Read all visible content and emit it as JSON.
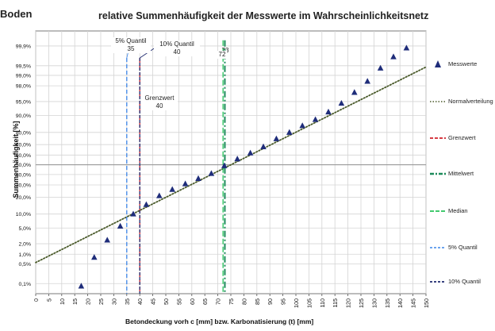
{
  "corner_label": "Boden",
  "chart_data": {
    "type": "scatter",
    "title": "relative Summenhäufigkeit der Messwerte im Wahrscheinlichkeitsnetz",
    "xlabel": "Betondeckung vorh c [mm] bzw. Karbonatisierung (t) [mm]",
    "ylabel": "Summenhäufigkeit [%]",
    "xlim": [
      0,
      150
    ],
    "x_ticks": [
      0,
      5,
      10,
      15,
      20,
      25,
      30,
      35,
      40,
      45,
      50,
      55,
      60,
      65,
      70,
      75,
      80,
      85,
      90,
      95,
      100,
      105,
      110,
      115,
      120,
      125,
      130,
      135,
      140,
      145,
      150
    ],
    "y_scale": "normal-probability",
    "y_ticks": [
      {
        "p": 0.1,
        "label": "0,1%"
      },
      {
        "p": 0.5,
        "label": "0,5%"
      },
      {
        "p": 1,
        "label": "1,0%"
      },
      {
        "p": 2,
        "label": "2,0%"
      },
      {
        "p": 5,
        "label": "5,0%"
      },
      {
        "p": 10,
        "label": "10,0%"
      },
      {
        "p": 20,
        "label": "20,0%"
      },
      {
        "p": 30,
        "label": "30,0%"
      },
      {
        "p": 40,
        "label": "40,0%"
      },
      {
        "p": 50,
        "label": "50,0%"
      },
      {
        "p": 60,
        "label": "60,0%"
      },
      {
        "p": 70,
        "label": "70,0%"
      },
      {
        "p": 80,
        "label": "80,0%"
      },
      {
        "p": 90,
        "label": "90,0%"
      },
      {
        "p": 95,
        "label": "95,0%"
      },
      {
        "p": 98,
        "label": "98,0%"
      },
      {
        "p": 99,
        "label": "99,0%"
      },
      {
        "p": 99.5,
        "label": "99,5%"
      },
      {
        "p": 99.9,
        "label": "99,9%"
      }
    ],
    "grid": true,
    "legend_position": "right",
    "measured": {
      "name": "Messwerte",
      "color": "#1f2d7a",
      "points": [
        {
          "x": 17.5,
          "y": 0.08
        },
        {
          "x": 22.5,
          "y": 0.8
        },
        {
          "x": 27.5,
          "y": 2.5
        },
        {
          "x": 32.5,
          "y": 5.5
        },
        {
          "x": 37.5,
          "y": 10
        },
        {
          "x": 42.5,
          "y": 15
        },
        {
          "x": 47.5,
          "y": 21
        },
        {
          "x": 52.5,
          "y": 26
        },
        {
          "x": 57.5,
          "y": 31
        },
        {
          "x": 62.5,
          "y": 36
        },
        {
          "x": 67.5,
          "y": 41
        },
        {
          "x": 72.5,
          "y": 49
        },
        {
          "x": 77.5,
          "y": 56
        },
        {
          "x": 82.5,
          "y": 62
        },
        {
          "x": 87.5,
          "y": 68
        },
        {
          "x": 92.5,
          "y": 75
        },
        {
          "x": 97.5,
          "y": 80
        },
        {
          "x": 102.5,
          "y": 84.5
        },
        {
          "x": 107.5,
          "y": 88
        },
        {
          "x": 112.5,
          "y": 91.5
        },
        {
          "x": 117.5,
          "y": 94.5
        },
        {
          "x": 122.5,
          "y": 97
        },
        {
          "x": 127.5,
          "y": 98.5
        },
        {
          "x": 132.5,
          "y": 99.4
        },
        {
          "x": 137.5,
          "y": 99.75
        },
        {
          "x": 142.5,
          "y": 99.88
        }
      ]
    },
    "normal_fit": {
      "name": "Normalverteilung",
      "color": "#4a5a2a",
      "from": {
        "x": 0,
        "y": 0.55
      },
      "to": {
        "x": 150,
        "y": 99.45
      }
    },
    "vlines": [
      {
        "key": "grenzwert",
        "name": "Grenzwert",
        "x": 40,
        "color": "#d0202a",
        "dash": "6 3"
      },
      {
        "key": "mittelwert",
        "name": "Mittelwert",
        "x": 72.7,
        "color": "#1c8a5a",
        "dash": "8 3 2 3"
      },
      {
        "key": "median",
        "name": "Median",
        "x": 72,
        "color": "#27c25a",
        "dash": "7 3"
      },
      {
        "key": "q5",
        "name": "5% Quantil",
        "x": 35,
        "color": "#3d86e8",
        "dash": "5 3"
      },
      {
        "key": "q10",
        "name": "10% Quantil",
        "x": 40,
        "color": "#1f2a6e",
        "dash": "4 2"
      }
    ],
    "annotations": {
      "q5": "5% Quantil\n35",
      "q10": "10% Quantil\n40",
      "grenzwert": "Grenzwert\n40",
      "median": "72",
      "mittelwert": "73"
    }
  }
}
